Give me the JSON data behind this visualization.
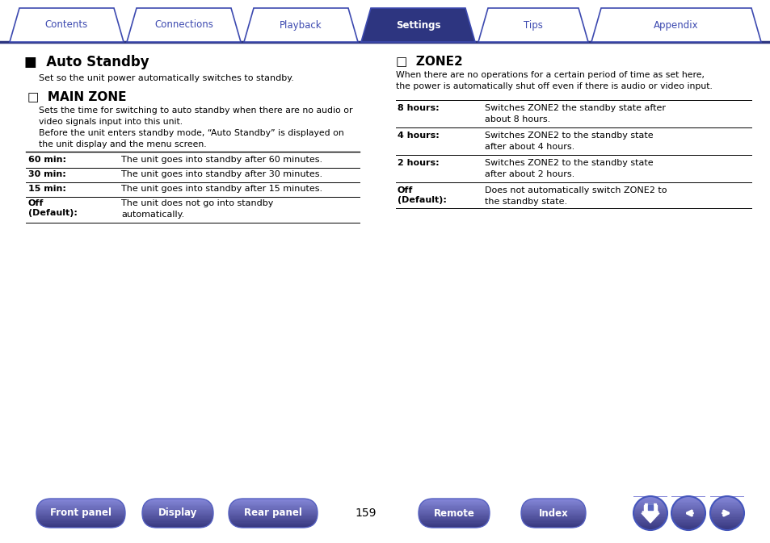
{
  "page_bg": "#ffffff",
  "tab_color_active": "#2d3580",
  "tab_color_inactive": "#ffffff",
  "tab_border_color": "#3d4ab0",
  "tab_labels": [
    "Contents",
    "Connections",
    "Playback",
    "Settings",
    "Tips",
    "Appendix"
  ],
  "tab_active_index": 3,
  "title_main": "Auto Standby",
  "title_main_prefix": "■",
  "subtitle_desc": "Set so the unit power automatically switches to standby.",
  "section1_title": "MAIN ZONE",
  "section1_title_prefix": "□",
  "section1_desc1": "Sets the time for switching to auto standby when there are no audio or\nvideo signals input into this unit.",
  "section1_desc2": "Before the unit enters standby mode, “Auto Standby” is displayed on\nthe unit display and the menu screen.",
  "table1_rows": [
    [
      "60 min:",
      "The unit goes into standby after 60 minutes."
    ],
    [
      "30 min:",
      "The unit goes into standby after 30 minutes."
    ],
    [
      "15 min:",
      "The unit goes into standby after 15 minutes."
    ],
    [
      "Off\n(Default):",
      "The unit does not go into standby\nautomatically."
    ]
  ],
  "section2_title": "ZONE2",
  "section2_title_prefix": "□",
  "section2_desc": "When there are no operations for a certain period of time as set here,\nthe power is automatically shut off even if there is audio or video input.",
  "table2_rows": [
    [
      "8 hours:",
      "Switches ZONE2 the standby state after\nabout 8 hours."
    ],
    [
      "4 hours:",
      "Switches ZONE2 to the standby state\nafter about 4 hours."
    ],
    [
      "2 hours:",
      "Switches ZONE2 to the standby state\nafter about 2 hours."
    ],
    [
      "Off\n(Default):",
      "Does not automatically switch ZONE2 to\nthe standby state."
    ]
  ],
  "bottom_buttons": [
    "Front panel",
    "Display",
    "Rear panel",
    "Remote",
    "Index"
  ],
  "page_number": "159",
  "divider_color": "#2d3580",
  "text_color": "#000000"
}
